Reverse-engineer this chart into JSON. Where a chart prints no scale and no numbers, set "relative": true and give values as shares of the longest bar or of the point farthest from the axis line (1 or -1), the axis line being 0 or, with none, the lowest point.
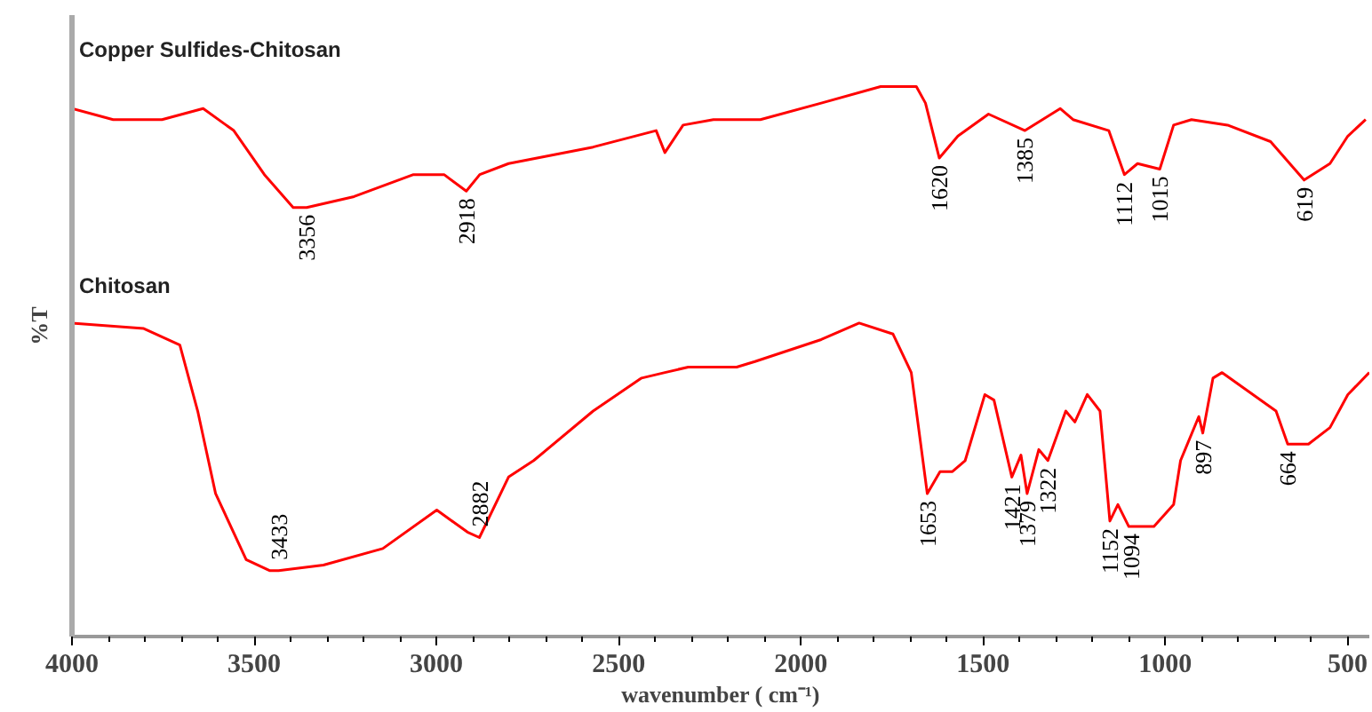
{
  "chart_data": {
    "type": "line",
    "relative": true,
    "xlabel": "wavenumber ( cm⁻¹)",
    "ylabel": "%T",
    "xlim": [
      4000,
      440
    ],
    "xticks": [
      4000,
      3500,
      3000,
      2500,
      2000,
      1500,
      1000,
      500
    ],
    "grid": false,
    "legend": false,
    "marker": "none",
    "line_style": "solid",
    "series": [
      {
        "name": "Copper Sulfides-Chitosan",
        "color": "#ff0000",
        "x": [
          4000,
          3887,
          3827,
          3753,
          3640,
          3556,
          3472,
          3393,
          3356,
          3226,
          3063,
          2979,
          2918,
          2881,
          2802,
          2570,
          2397,
          2373,
          2323,
          2240,
          2176,
          2111,
          1944,
          1781,
          1683,
          1658,
          1620,
          1569,
          1485,
          1385,
          1288,
          1253,
          1155,
          1112,
          1076,
          1015,
          977,
          928,
          829,
          711,
          619,
          548,
          499,
          450
        ],
        "values": [
          0.96,
          0.94,
          0.94,
          0.94,
          0.96,
          0.92,
          0.84,
          0.78,
          0.78,
          0.8,
          0.84,
          0.84,
          0.81,
          0.84,
          0.86,
          0.89,
          0.92,
          0.88,
          0.93,
          0.94,
          0.94,
          0.94,
          0.97,
          1.0,
          1.0,
          0.97,
          0.87,
          0.91,
          0.95,
          0.92,
          0.96,
          0.94,
          0.92,
          0.84,
          0.86,
          0.85,
          0.93,
          0.94,
          0.93,
          0.9,
          0.83,
          0.86,
          0.91,
          0.94
        ]
      },
      {
        "name": "Chitosan",
        "color": "#ff0000",
        "x": [
          4000,
          3803,
          3704,
          3655,
          3606,
          3522,
          3458,
          3433,
          3310,
          3147,
          2999,
          2915,
          2882,
          2802,
          2733,
          2570,
          2437,
          2373,
          2309,
          2176,
          2126,
          1944,
          1840,
          1747,
          1697,
          1653,
          1618,
          1584,
          1549,
          1495,
          1470,
          1421,
          1396,
          1379,
          1347,
          1322,
          1273,
          1248,
          1214,
          1179,
          1152,
          1130,
          1100,
          1094,
          1031,
          977,
          958,
          908,
          897,
          869,
          844,
          696,
          664,
          607,
          548,
          499,
          440
        ],
        "values": [
          0.57,
          0.56,
          0.53,
          0.41,
          0.26,
          0.14,
          0.12,
          0.12,
          0.13,
          0.16,
          0.23,
          0.19,
          0.18,
          0.29,
          0.32,
          0.41,
          0.47,
          0.48,
          0.49,
          0.49,
          0.5,
          0.54,
          0.57,
          0.55,
          0.48,
          0.26,
          0.3,
          0.3,
          0.32,
          0.44,
          0.43,
          0.29,
          0.33,
          0.26,
          0.34,
          0.32,
          0.41,
          0.39,
          0.44,
          0.41,
          0.21,
          0.24,
          0.2,
          0.2,
          0.2,
          0.24,
          0.32,
          0.4,
          0.37,
          0.47,
          0.48,
          0.41,
          0.35,
          0.35,
          0.38,
          0.44,
          0.48
        ]
      }
    ],
    "annotations": [
      {
        "text": "3356",
        "x": 3356,
        "y": 0.78
      },
      {
        "text": "2918",
        "x": 2918,
        "y": 0.81
      },
      {
        "text": "1620",
        "x": 1620,
        "y": 0.87
      },
      {
        "text": "1385",
        "x": 1385,
        "y": 0.92
      },
      {
        "text": "1112",
        "x": 1112,
        "y": 0.84
      },
      {
        "text": "1015",
        "x": 1015,
        "y": 0.85
      },
      {
        "text": "619",
        "x": 619,
        "y": 0.83
      },
      {
        "text": "3433",
        "x": 3433,
        "y": 0.12
      },
      {
        "text": "2882",
        "x": 2882,
        "y": 0.18
      },
      {
        "text": "1653",
        "x": 1653,
        "y": 0.26
      },
      {
        "text": "1421",
        "x": 1421,
        "y": 0.29
      },
      {
        "text": "1379",
        "x": 1379,
        "y": 0.26
      },
      {
        "text": "1322",
        "x": 1322,
        "y": 0.32
      },
      {
        "text": "1152",
        "x": 1152,
        "y": 0.21
      },
      {
        "text": "1094",
        "x": 1094,
        "y": 0.2
      },
      {
        "text": "897",
        "x": 897,
        "y": 0.37
      },
      {
        "text": "664",
        "x": 664,
        "y": 0.35
      }
    ]
  }
}
